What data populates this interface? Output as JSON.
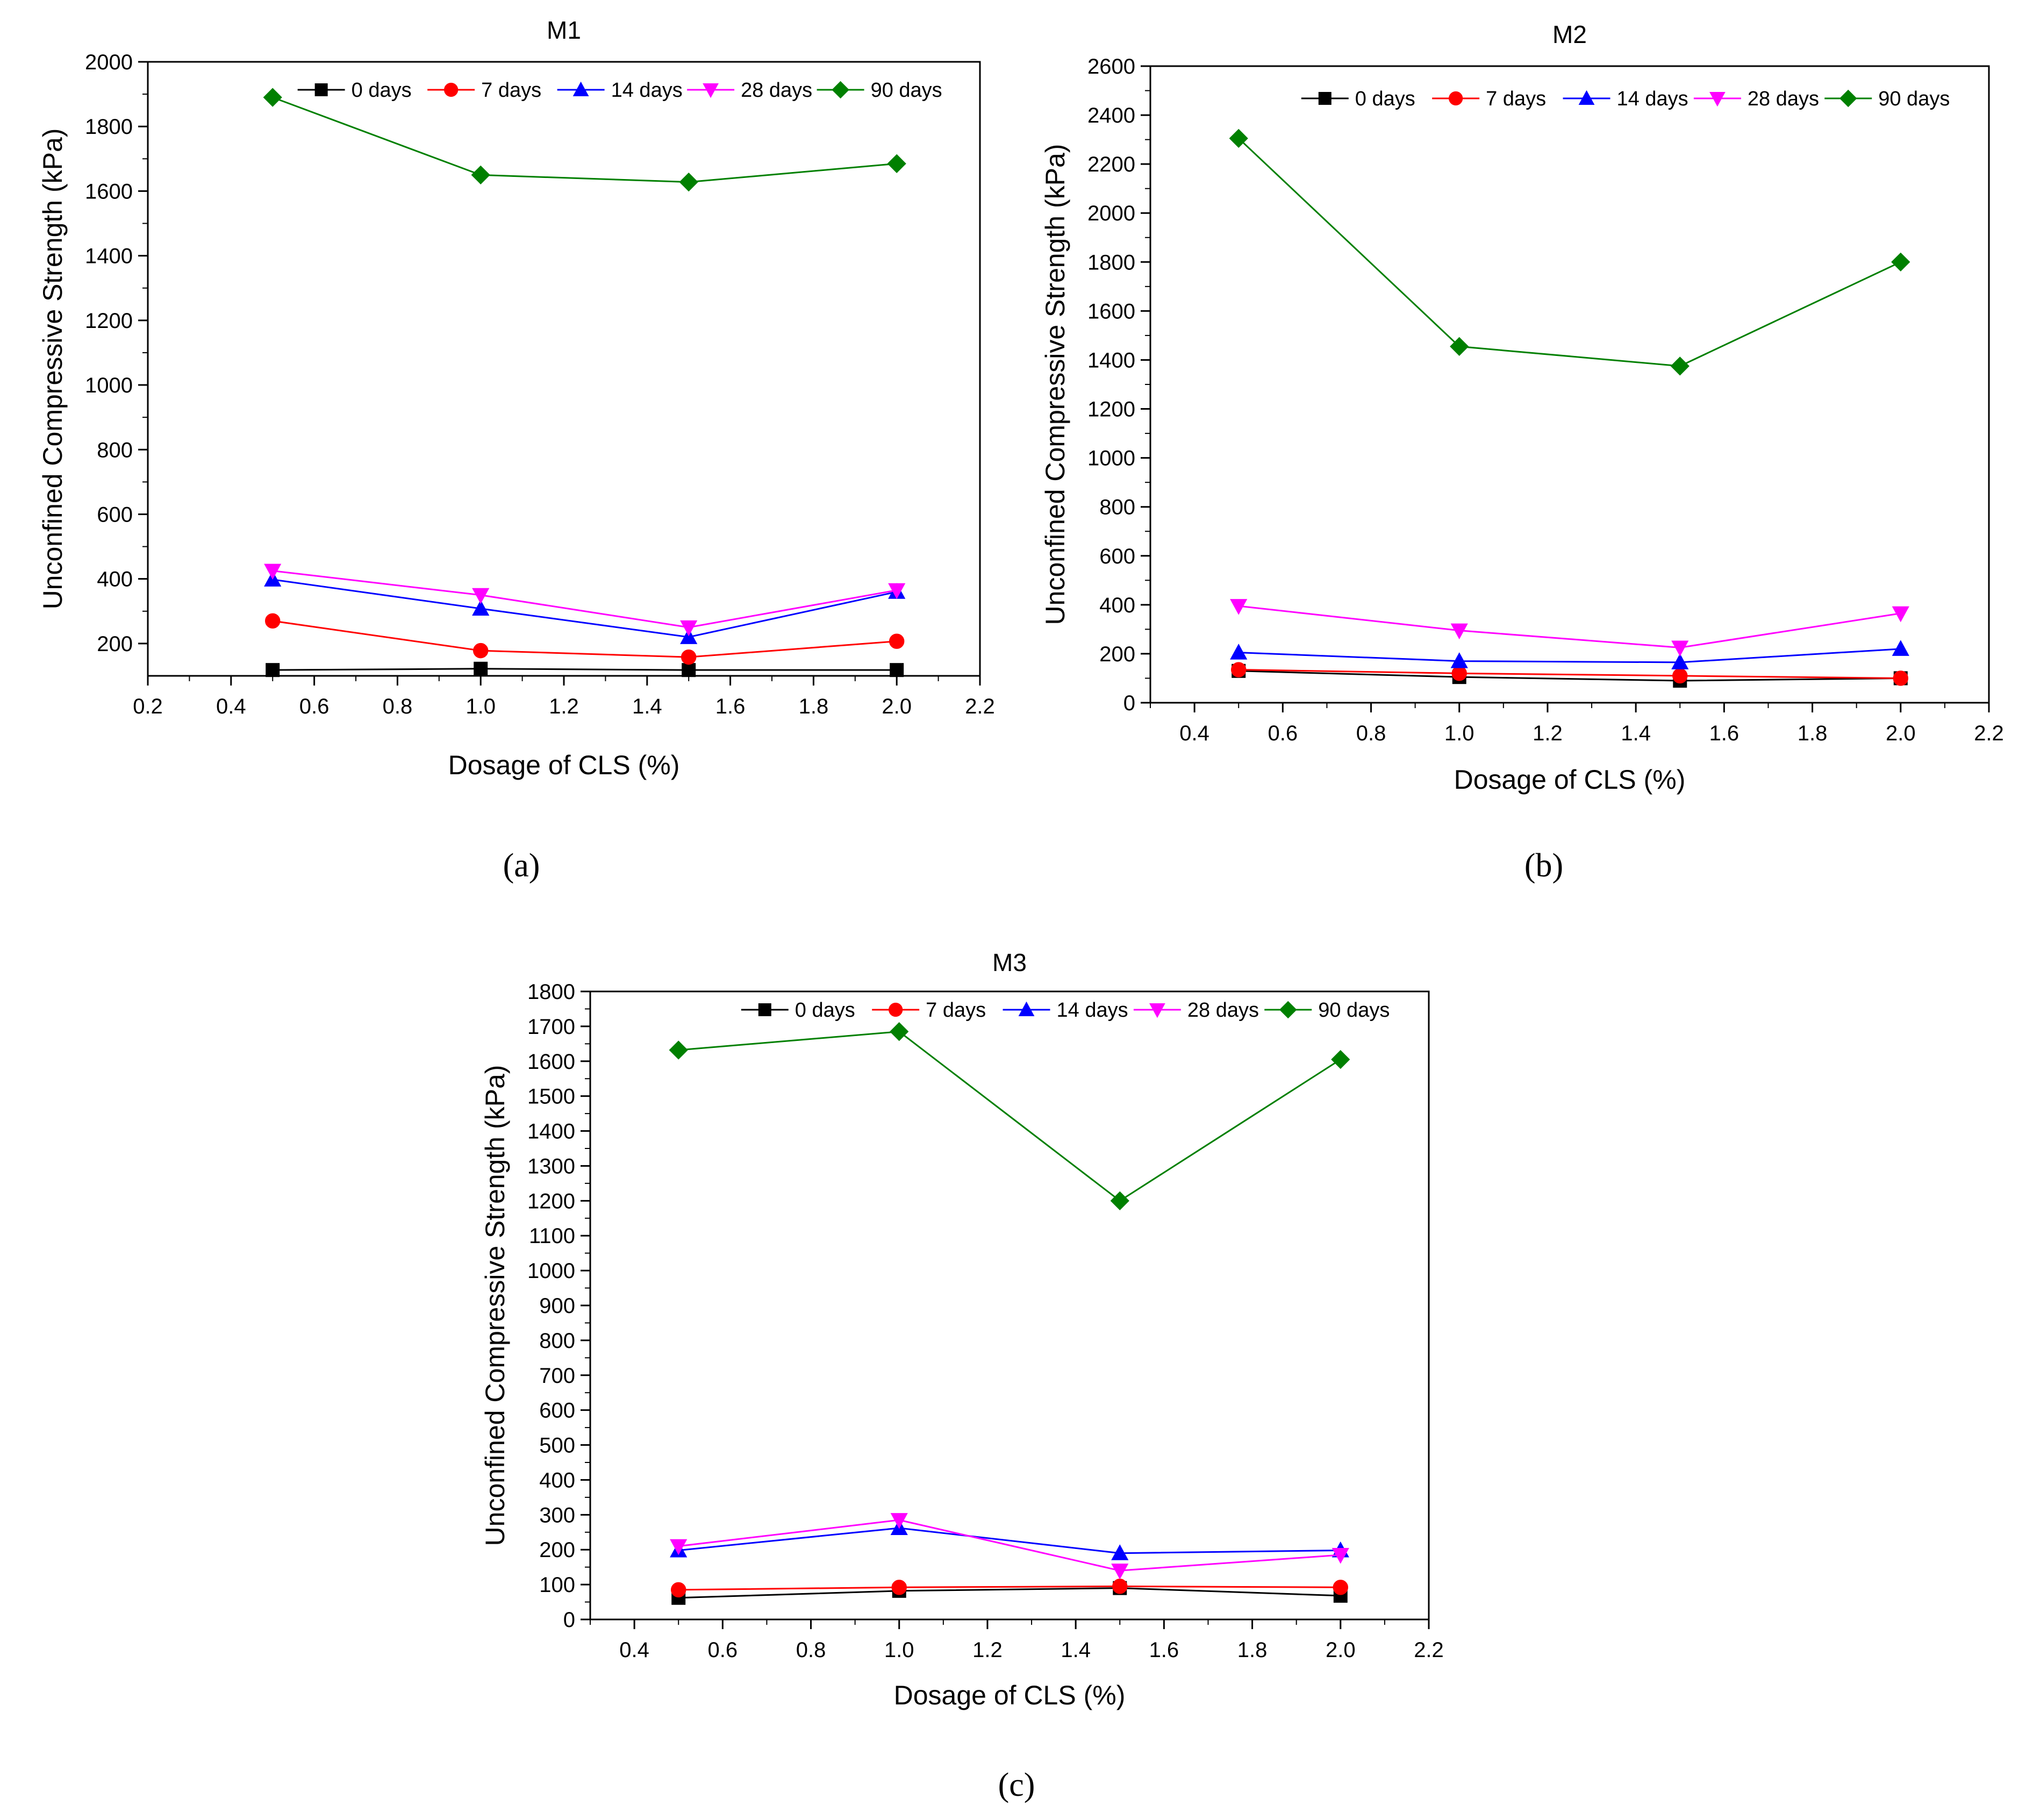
{
  "figure": {
    "panel_labels": [
      "(a)",
      "(b)",
      "(c)"
    ]
  },
  "chart_data": [
    {
      "type": "line",
      "title": "M1",
      "xlabel": "Dosage of CLS (%)",
      "ylabel": "Unconfined Compressive Strength (kPa)",
      "xlim": [
        0.2,
        2.2
      ],
      "ylim": [
        100,
        2000
      ],
      "xticks": [
        0.2,
        0.4,
        0.6,
        0.8,
        1.0,
        1.2,
        1.4,
        1.6,
        1.8,
        2.0,
        2.2
      ],
      "yticks": [
        200,
        400,
        600,
        800,
        1000,
        1200,
        1400,
        1600,
        1800,
        2000
      ],
      "legend_position": "top",
      "x": [
        0.5,
        1.0,
        1.5,
        2.0
      ],
      "series": [
        {
          "name": "0 days",
          "color": "#000000",
          "marker": "square",
          "values": [
            118,
            122,
            118,
            118
          ]
        },
        {
          "name": "7 days",
          "color": "#ff0000",
          "marker": "circle",
          "values": [
            270,
            178,
            158,
            207
          ]
        },
        {
          "name": "14 days",
          "color": "#0000ff",
          "marker": "triangle-up",
          "values": [
            398,
            308,
            220,
            360
          ]
        },
        {
          "name": "28 days",
          "color": "#ff00ff",
          "marker": "triangle-down",
          "values": [
            425,
            350,
            250,
            365
          ]
        },
        {
          "name": "90 days",
          "color": "#008000",
          "marker": "diamond",
          "values": [
            1890,
            1650,
            1628,
            1685
          ]
        }
      ]
    },
    {
      "type": "line",
      "title": "M2",
      "xlabel": "Dosage of CLS (%)",
      "ylabel": "Unconfined Compressive Strength (kPa)",
      "xlim": [
        0.3,
        2.2
      ],
      "ylim": [
        0,
        2600
      ],
      "xticks": [
        0.4,
        0.6,
        0.8,
        1.0,
        1.2,
        1.4,
        1.6,
        1.8,
        2.0,
        2.2
      ],
      "yticks": [
        0,
        200,
        400,
        600,
        800,
        1000,
        1200,
        1400,
        1600,
        1800,
        2000,
        2200,
        2400,
        2600
      ],
      "legend_position": "top",
      "x": [
        0.5,
        1.0,
        1.5,
        2.0
      ],
      "series": [
        {
          "name": "0 days",
          "color": "#000000",
          "marker": "square",
          "values": [
            130,
            105,
            90,
            100
          ]
        },
        {
          "name": "7 days",
          "color": "#ff0000",
          "marker": "circle",
          "values": [
            135,
            120,
            110,
            100
          ]
        },
        {
          "name": "14 days",
          "color": "#0000ff",
          "marker": "triangle-up",
          "values": [
            205,
            170,
            165,
            220
          ]
        },
        {
          "name": "28 days",
          "color": "#ff00ff",
          "marker": "triangle-down",
          "values": [
            395,
            295,
            225,
            365
          ]
        },
        {
          "name": "90 days",
          "color": "#008000",
          "marker": "diamond",
          "values": [
            2305,
            1455,
            1375,
            1800
          ]
        }
      ]
    },
    {
      "type": "line",
      "title": "M3",
      "xlabel": "Dosage of CLS (%)",
      "ylabel": "Unconfined Compressive Strength (kPa)",
      "xlim": [
        0.3,
        2.2
      ],
      "ylim": [
        0,
        1800
      ],
      "xticks": [
        0.4,
        0.6,
        0.8,
        1.0,
        1.2,
        1.4,
        1.6,
        1.8,
        2.0,
        2.2
      ],
      "yticks": [
        0,
        100,
        200,
        300,
        400,
        500,
        600,
        700,
        800,
        900,
        1000,
        1100,
        1200,
        1300,
        1400,
        1500,
        1600,
        1700,
        1800
      ],
      "legend_position": "top",
      "x": [
        0.5,
        1.0,
        1.5,
        2.0
      ],
      "series": [
        {
          "name": "0 days",
          "color": "#000000",
          "marker": "square",
          "values": [
            62,
            82,
            90,
            68
          ]
        },
        {
          "name": "7 days",
          "color": "#ff0000",
          "marker": "circle",
          "values": [
            85,
            92,
            95,
            92
          ]
        },
        {
          "name": "14 days",
          "color": "#0000ff",
          "marker": "triangle-up",
          "values": [
            198,
            262,
            190,
            198
          ]
        },
        {
          "name": "28 days",
          "color": "#ff00ff",
          "marker": "triangle-down",
          "values": [
            210,
            285,
            140,
            185
          ]
        },
        {
          "name": "90 days",
          "color": "#008000",
          "marker": "diamond",
          "values": [
            1632,
            1685,
            1200,
            1605
          ]
        }
      ]
    }
  ]
}
